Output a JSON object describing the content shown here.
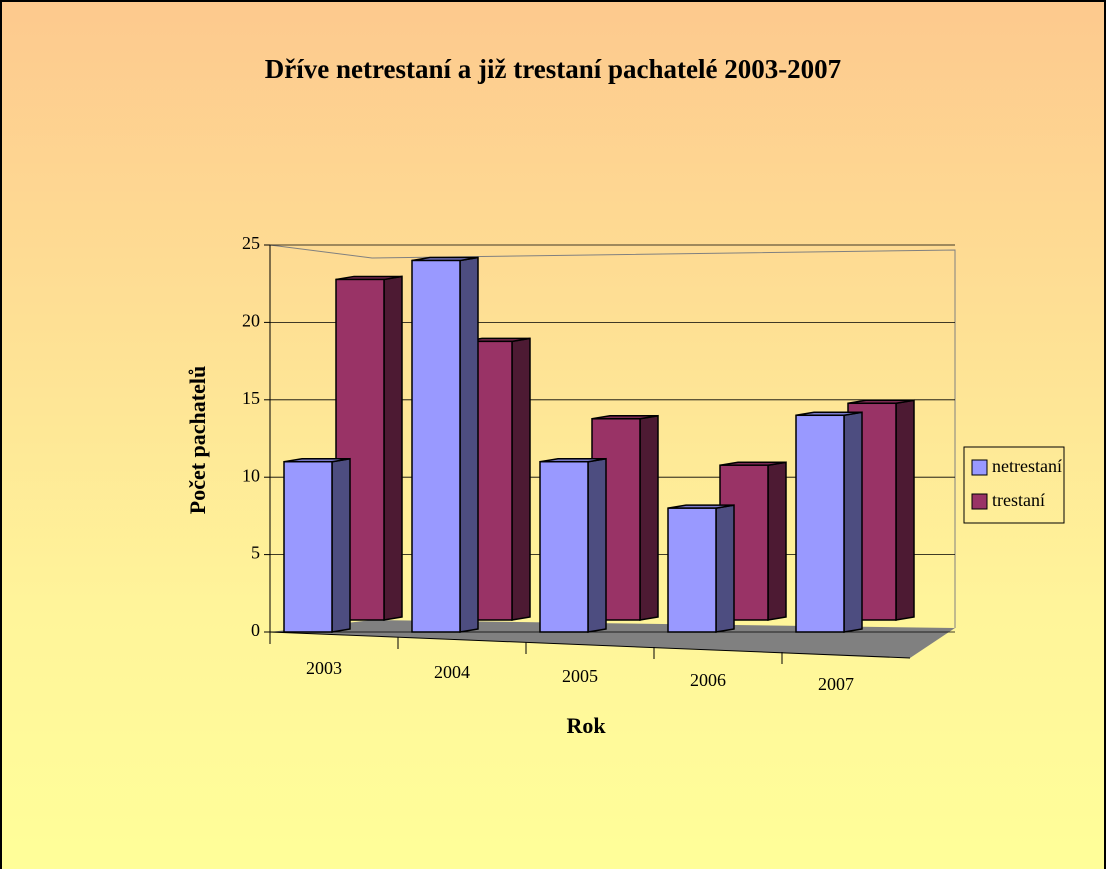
{
  "chart_data": {
    "type": "bar",
    "title": "Dříve netrestaní a již trestaní pachatelé 2003-2007",
    "x_label": "Rok",
    "y_label": "Počet pachatelů",
    "categories": [
      "2003",
      "2004",
      "2005",
      "2006",
      "2007"
    ],
    "series": [
      {
        "name": "netrestaní",
        "color": "#9999ff",
        "values": [
          11,
          24,
          11,
          8,
          14
        ]
      },
      {
        "name": "trestaní",
        "color": "#993366",
        "values": [
          22,
          18,
          13,
          10,
          14
        ]
      }
    ],
    "ylim": [
      0,
      25
    ],
    "yticks": [
      0,
      5,
      10,
      15,
      20,
      25
    ],
    "grid": true,
    "legend": "right"
  }
}
